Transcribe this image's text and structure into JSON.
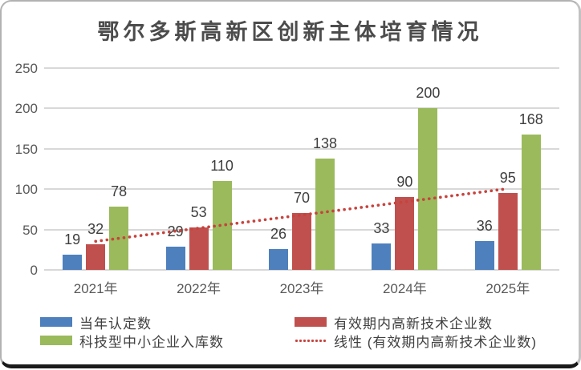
{
  "chart_data": {
    "type": "bar",
    "title": "鄂尔多斯高新区创新主体培育情况",
    "categories": [
      "2021年",
      "2022年",
      "2023年",
      "2024年",
      "2025年"
    ],
    "series": [
      {
        "name": "当年认定数",
        "color": "#4e80bd",
        "values": [
          19,
          29,
          26,
          33,
          36
        ]
      },
      {
        "name": "有效期内高新技术企业数",
        "color": "#c0504d",
        "values": [
          32,
          53,
          70,
          90,
          95
        ]
      },
      {
        "name": "科技型中小企业入库数",
        "color": "#9aba5c",
        "values": [
          78,
          110,
          138,
          200,
          168
        ]
      }
    ],
    "trendline": {
      "name": "线性 (有效期内高新技术企业数)",
      "of_series": "有效期内高新技术企业数",
      "color": "#c7433d",
      "style": "dotted",
      "start_value": 35.4,
      "end_value": 100.6
    },
    "xlabel": "",
    "ylabel": "",
    "ylim": [
      0,
      250
    ],
    "yticks": [
      0,
      50,
      100,
      150,
      200,
      250
    ],
    "grid": true,
    "legend_position": "bottom",
    "data_labels": true
  },
  "legend": {
    "items": [
      {
        "label": "当年认定数",
        "color": "#4e80bd",
        "swatch": "square"
      },
      {
        "label": "有效期内高新技术企业数",
        "color": "#c0504d",
        "swatch": "square"
      },
      {
        "label": "科技型中小企业入库数",
        "color": "#9aba5c",
        "swatch": "square"
      },
      {
        "label": "线性 (有效期内高新技术企业数)",
        "color": "#c7433d",
        "swatch": "dotted-line"
      }
    ]
  },
  "colors": {
    "title_text": "#4c4c4c",
    "axis_text": "#595959",
    "value_label_text": "#3e3e3e",
    "gridline": "#d8d8d8",
    "card_border": "#b2b2b2",
    "card_bottom_edge": "#1a1a1a"
  }
}
